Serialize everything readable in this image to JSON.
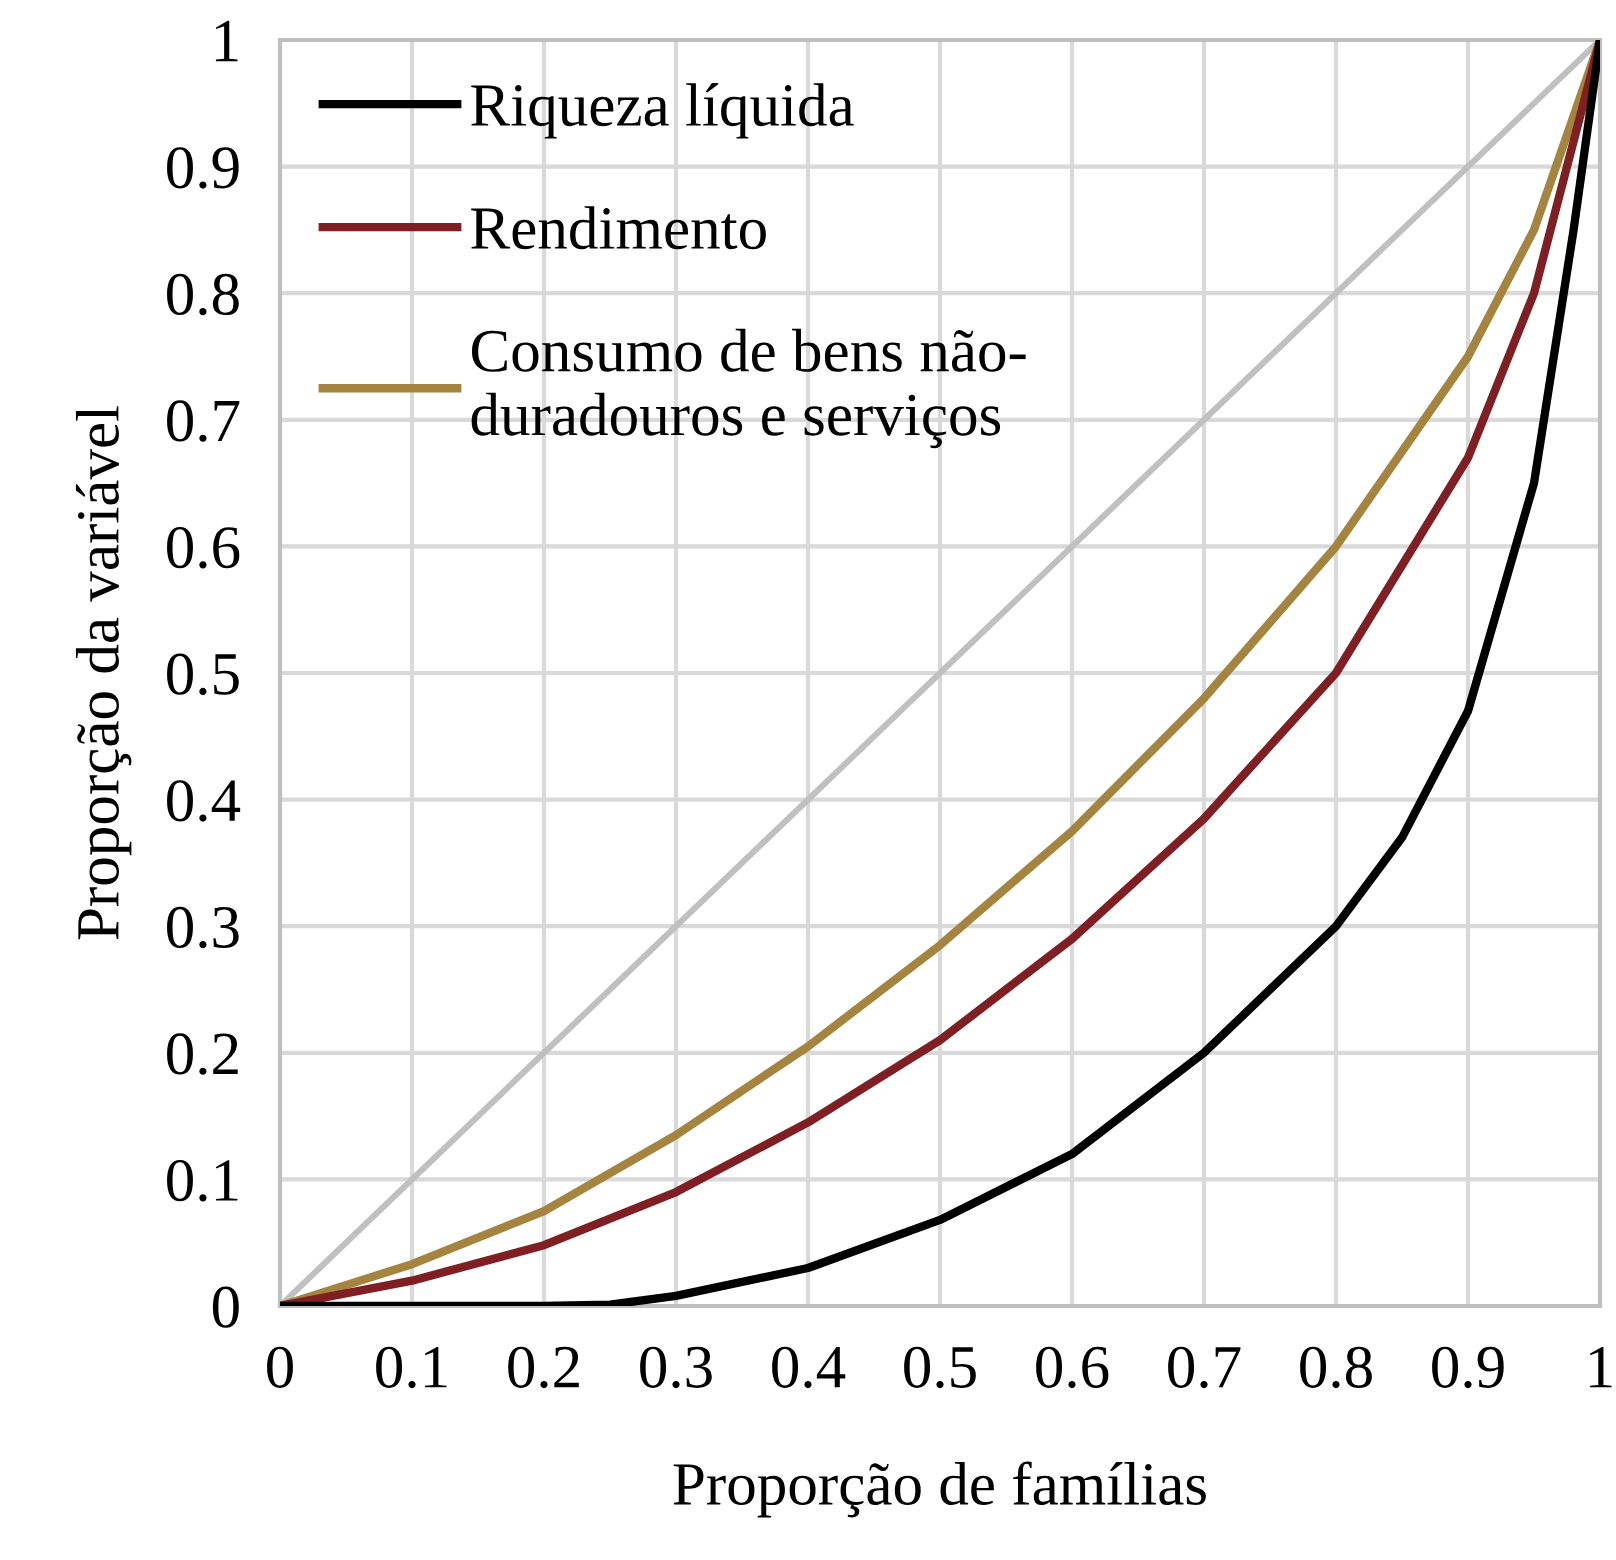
{
  "chart_data": {
    "type": "line",
    "xlabel": "Proporção de famílias",
    "ylabel": "Proporção da variável",
    "xlim": [
      0,
      1
    ],
    "ylim": [
      0,
      1
    ],
    "xticks": [
      0,
      0.1,
      0.2,
      0.3,
      0.4,
      0.5,
      0.6,
      0.7,
      0.8,
      0.9,
      1
    ],
    "yticks": [
      0,
      0.1,
      0.2,
      0.3,
      0.4,
      0.5,
      0.6,
      0.7,
      0.8,
      0.9,
      1
    ],
    "grid": true,
    "legend": "top left",
    "marker": "none",
    "line_style": "solid",
    "series": [
      {
        "name": "Riqueza líquida",
        "color": "#000000",
        "x": [
          0,
          0.1,
          0.2,
          0.25,
          0.3,
          0.4,
          0.5,
          0.6,
          0.7,
          0.8,
          0.85,
          0.9,
          0.95,
          0.98,
          1
        ],
        "values": [
          0,
          0,
          0,
          0.001,
          0.008,
          0.03,
          0.068,
          0.12,
          0.2,
          0.3,
          0.37,
          0.47,
          0.65,
          0.85,
          1
        ]
      },
      {
        "name": "Rendimento",
        "color": "#7f1f23",
        "x": [
          0,
          0.1,
          0.2,
          0.3,
          0.4,
          0.5,
          0.6,
          0.7,
          0.8,
          0.9,
          0.95,
          1
        ],
        "values": [
          0,
          0.02,
          0.048,
          0.09,
          0.145,
          0.21,
          0.29,
          0.385,
          0.5,
          0.67,
          0.8,
          1
        ]
      },
      {
        "name": "Consumo de bens não-\nduradouros e serviços",
        "color": "#a5843f",
        "x": [
          0,
          0.1,
          0.2,
          0.3,
          0.4,
          0.5,
          0.6,
          0.7,
          0.8,
          0.9,
          0.95,
          1
        ],
        "values": [
          0,
          0.033,
          0.075,
          0.135,
          0.205,
          0.285,
          0.375,
          0.48,
          0.6,
          0.75,
          0.85,
          1
        ]
      },
      {
        "color": "#c0c0c0",
        "x": [
          0,
          1
        ],
        "values": [
          0,
          1
        ]
      }
    ]
  }
}
